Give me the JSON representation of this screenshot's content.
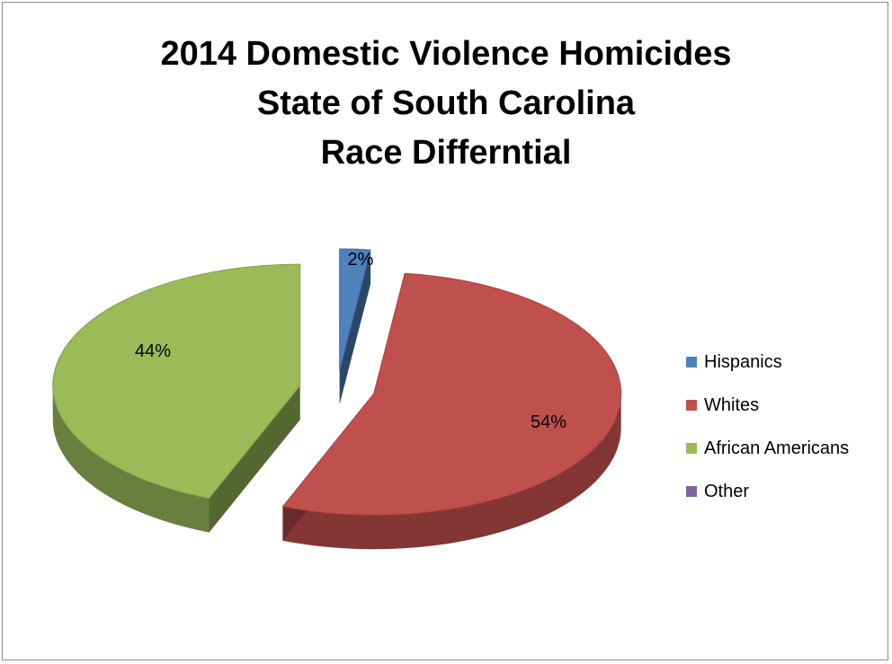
{
  "chart_data": {
    "type": "pie",
    "title_lines": [
      "2014 Domestic Violence Homicides",
      "State of South Carolina",
      "Race Differntial"
    ],
    "categories": [
      "Hispanics",
      "Whites",
      "African Americans",
      "Other"
    ],
    "values": [
      2,
      54,
      44,
      0
    ],
    "labels": [
      "2%",
      "54%",
      "44%",
      ""
    ],
    "colors": [
      "#4f81bd",
      "#c0504d",
      "#9bbb59",
      "#8064a2"
    ],
    "legend_position": "right",
    "exploded": true,
    "style": "3d"
  }
}
